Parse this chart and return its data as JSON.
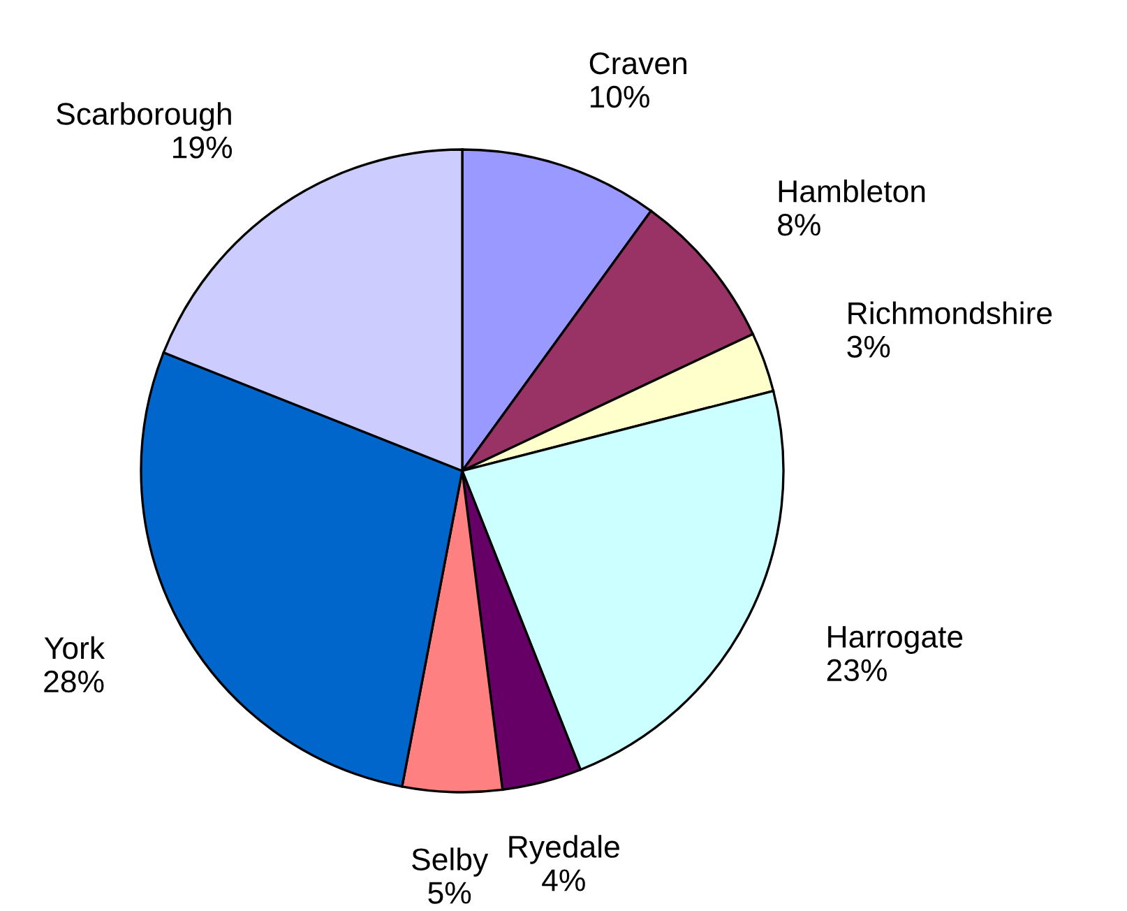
{
  "chart_data": {
    "type": "pie",
    "categories": [
      "Craven",
      "Hambleton",
      "Richmondshire",
      "Harrogate",
      "Ryedale",
      "Selby",
      "York",
      "Scarborough"
    ],
    "values": [
      10,
      8,
      3,
      23,
      4,
      5,
      28,
      19
    ],
    "value_labels": [
      "10%",
      "8%",
      "3%",
      "23%",
      "4%",
      "5%",
      "28%",
      "19%"
    ],
    "colors": [
      "#9999ff",
      "#993366",
      "#ffffcc",
      "#ccffff",
      "#660066",
      "#ff8080",
      "#0066cc",
      "#ccccff"
    ],
    "legend": false
  }
}
